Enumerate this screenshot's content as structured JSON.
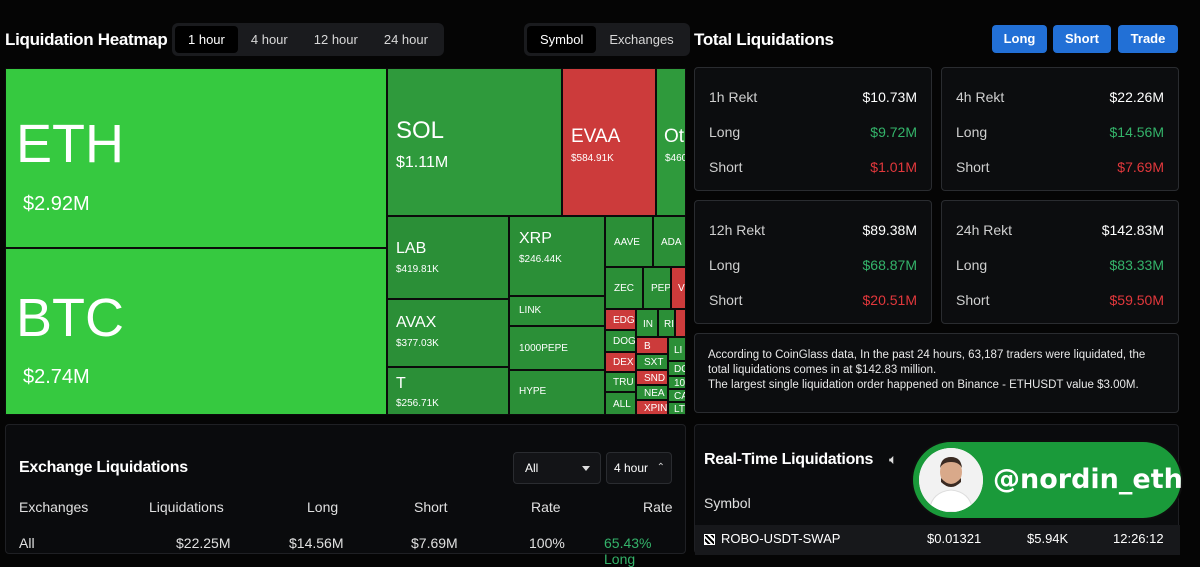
{
  "heatmap": {
    "title": "Liquidation Heatmap",
    "time_tabs": [
      {
        "label": "1 hour",
        "active": true
      },
      {
        "label": "4 hour",
        "active": false
      },
      {
        "label": "12 hour",
        "active": false
      },
      {
        "label": "24 hour",
        "active": false
      }
    ],
    "mode_tabs": [
      {
        "label": "Symbol",
        "active": true
      },
      {
        "label": "Exchanges",
        "active": false
      }
    ],
    "tiles": {
      "eth": {
        "name": "ETH",
        "value": "$2.92M"
      },
      "btc": {
        "name": "BTC",
        "value": "$2.74M"
      },
      "sol": {
        "name": "SOL",
        "value": "$1.11M"
      },
      "evaa": {
        "name": "EVAA",
        "value": "$584.91K"
      },
      "other": {
        "name": "Ot",
        "value": "$460"
      },
      "lab": {
        "name": "LAB",
        "value": "$419.81K"
      },
      "xrp": {
        "name": "XRP",
        "value": "$246.44K"
      },
      "avax": {
        "name": "AVAX",
        "value": "$377.03K"
      },
      "t": {
        "name": "T",
        "value": "$256.71K"
      },
      "link": {
        "name": "LINK"
      },
      "pepe": {
        "name": "1000PEPE"
      },
      "hype": {
        "name": "HYPE"
      },
      "aave": {
        "name": "AAVE"
      },
      "ada": {
        "name": "ADA"
      },
      "zec": {
        "name": "ZEC"
      },
      "pep": {
        "name": "PEP"
      },
      "v": {
        "name": "V"
      },
      "edg": {
        "name": "EDG"
      },
      "in": {
        "name": "IN"
      },
      "ri": {
        "name": "RI"
      },
      "dog": {
        "name": "DOG"
      },
      "b": {
        "name": "B"
      },
      "li": {
        "name": "LI"
      },
      "dex": {
        "name": "DEX"
      },
      "sxt": {
        "name": "SXT"
      },
      "tru": {
        "name": "TRU"
      },
      "snd": {
        "name": "SND"
      },
      "dc": {
        "name": "DO"
      },
      "n10": {
        "name": "10"
      },
      "nea": {
        "name": "NEA"
      },
      "ca": {
        "name": "CA"
      },
      "all": {
        "name": "ALL"
      },
      "xpin": {
        "name": "XPIN"
      },
      "lt": {
        "name": "LT"
      }
    }
  },
  "total": {
    "title": "Total Liquidations",
    "buttons": {
      "long": "Long",
      "short": "Short",
      "trade": "Trade"
    },
    "cards": [
      {
        "period": "1h Rekt",
        "total": "$10.73M",
        "long_label": "Long",
        "long": "$9.72M",
        "short_label": "Short",
        "short": "$1.01M"
      },
      {
        "period": "4h Rekt",
        "total": "$22.26M",
        "long_label": "Long",
        "long": "$14.56M",
        "short_label": "Short",
        "short": "$7.69M"
      },
      {
        "period": "12h Rekt",
        "total": "$89.38M",
        "long_label": "Long",
        "long": "$68.87M",
        "short_label": "Short",
        "short": "$20.51M"
      },
      {
        "period": "24h Rekt",
        "total": "$142.83M",
        "long_label": "Long",
        "long": "$83.33M",
        "short_label": "Short",
        "short": "$59.50M"
      }
    ],
    "summary_line1": "According to CoinGlass data, In the past 24 hours, 63,187 traders were liquidated, the",
    "summary_line2": "total liquidations comes in at $142.83 million.",
    "summary_line3": "The largest single liquidation order happened on Binance - ETHUSDT value $3.00M."
  },
  "exchange": {
    "title": "Exchange Liquidations",
    "filter": "All",
    "period": "4 hour",
    "columns": [
      "Exchanges",
      "Liquidations",
      "Long",
      "Short",
      "Rate",
      "Rate"
    ],
    "first_row": [
      "All",
      "$22.25M",
      "$14.56M",
      "$7.69M",
      "100%",
      "65.43% Long"
    ]
  },
  "realtime": {
    "title": "Real-Time Liquidations",
    "column_symbol": "Symbol",
    "row": {
      "symbol": "ROBO-USDT-SWAP",
      "price": "$0.01321",
      "value": "$5.94K",
      "time": "12:26:12"
    }
  },
  "watermark": {
    "handle": "@nordin_eth"
  },
  "colors": {
    "bright_green": "#36c940",
    "green": "#2f9a3c",
    "red": "#cc3b3b",
    "accent_blue": "#2270d6",
    "long_text": "#34b36a",
    "short_text": "#e2383c"
  }
}
